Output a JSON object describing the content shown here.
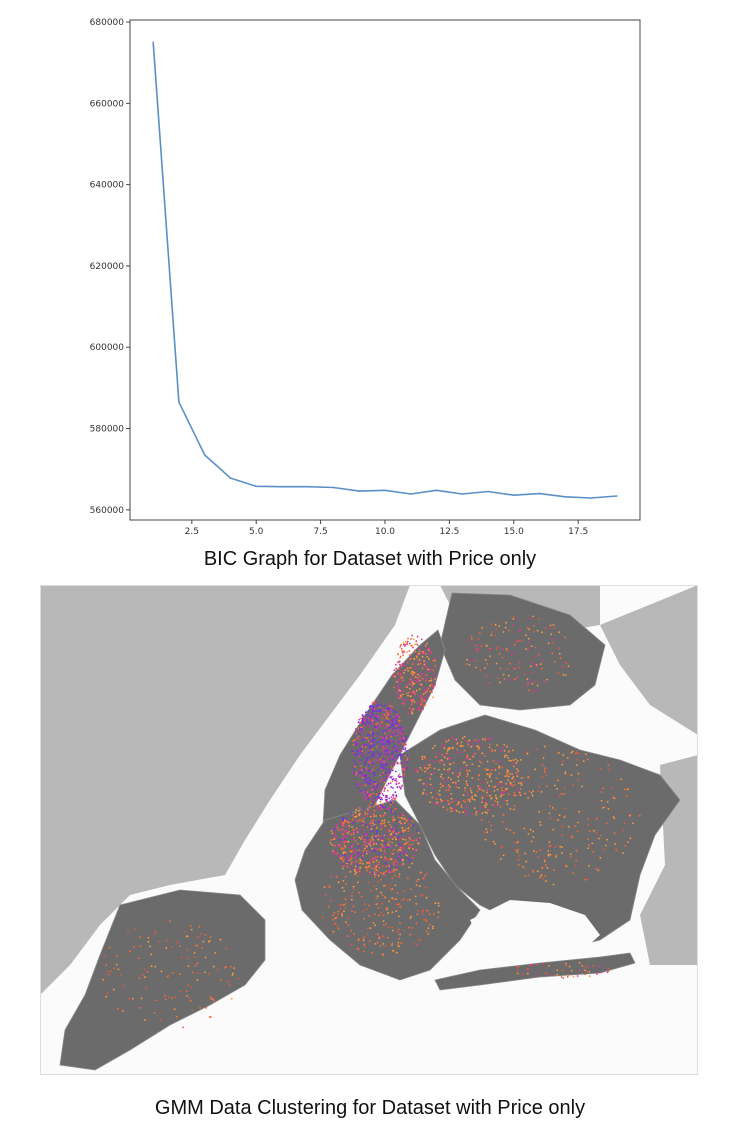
{
  "chart_data": [
    {
      "type": "line",
      "title": "",
      "xlabel": "",
      "ylabel": "",
      "x": [
        1,
        2,
        3,
        4,
        5,
        6,
        7,
        8,
        9,
        10,
        11,
        12,
        13,
        14,
        15,
        16,
        17,
        18,
        19
      ],
      "series": [
        {
          "values": [
            675000,
            586500,
            573500,
            567800,
            565800,
            565700,
            565700,
            565500,
            564600,
            564800,
            563900,
            564800,
            563900,
            564500,
            563600,
            564000,
            563200,
            562900,
            563400
          ]
        }
      ],
      "xlim": [
        0.1,
        19.9
      ],
      "ylim": [
        557500,
        680500
      ],
      "xticks": [
        "2.5",
        "5.0",
        "7.5",
        "10.0",
        "12.5",
        "15.0",
        "17.5"
      ],
      "xtick_values": [
        2.5,
        5.0,
        7.5,
        10.0,
        12.5,
        15.0,
        17.5
      ],
      "yticks": [
        "560000",
        "580000",
        "600000",
        "620000",
        "640000",
        "660000",
        "680000"
      ],
      "ytick_values": [
        560000,
        580000,
        600000,
        620000,
        640000,
        660000,
        680000
      ],
      "grid": false,
      "line_color": "#5b8fc7"
    }
  ],
  "captions": {
    "bic": "BIC Graph for Dataset with Price only",
    "gmm": "GMM Data Clustering for Dataset with Price only"
  },
  "map": {
    "water_color": "#fbfbfb",
    "land_color": "#b8b8b8",
    "borough_color": "#6b6b6b",
    "cluster_colors": [
      "#7a2cf0",
      "#e0359a",
      "#ff6a3a",
      "#ff9a3c",
      "#e8583f"
    ]
  }
}
